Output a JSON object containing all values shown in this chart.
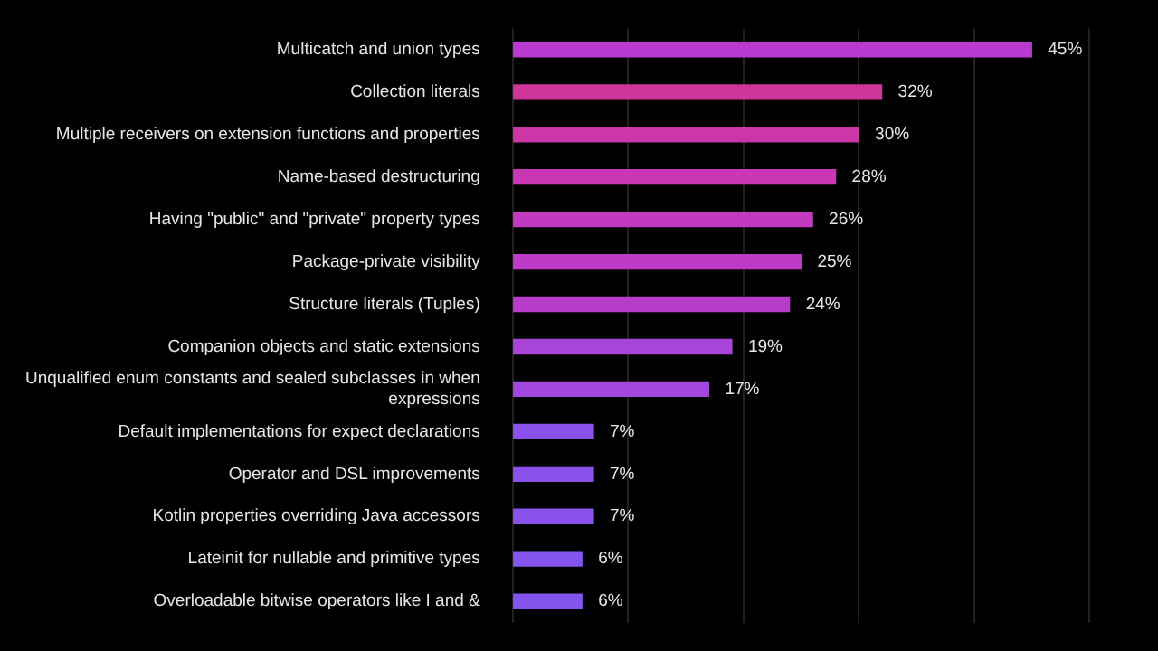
{
  "chart_data": {
    "type": "bar",
    "orientation": "horizontal",
    "categories": [
      "Multicatch and union types",
      "Collection literals",
      "Multiple receivers on extension functions and properties",
      "Name-based destructuring",
      "Having \"public\" and \"private\" property types",
      "Package-private visibility",
      "Structure literals (Tuples)",
      "Companion objects and static extensions",
      "Unqualified enum constants and sealed subclasses in when expressions",
      "Default implementations for expect declarations",
      "Operator and DSL improvements",
      "Kotlin properties overriding Java accessors",
      "Lateinit for nullable and primitive types",
      "Overloadable bitwise operators like I and &"
    ],
    "values": [
      45,
      32,
      30,
      28,
      26,
      25,
      24,
      19,
      17,
      7,
      7,
      7,
      6,
      6
    ],
    "value_labels": [
      "45%",
      "32%",
      "30%",
      "28%",
      "26%",
      "25%",
      "24%",
      "19%",
      "17%",
      "7%",
      "7%",
      "7%",
      "6%",
      "6%"
    ],
    "colors": [
      "#b93ad0",
      "#d0359a",
      "#cc37a8",
      "#c937b4",
      "#c23abf",
      "#bd3bc6",
      "#b83cca",
      "#a944d8",
      "#a147de",
      "#8a52ea",
      "#8a52ea",
      "#8a52ea",
      "#8355ee",
      "#8355ee"
    ],
    "xlim": [
      0,
      50
    ],
    "xticks": [
      {
        "value": 0,
        "label": null
      },
      {
        "value": 10,
        "label": null
      },
      {
        "value": 20,
        "label": null
      },
      {
        "value": 30,
        "label": null
      },
      {
        "value": 40,
        "label": null
      },
      {
        "value": 50,
        "label": null
      }
    ],
    "grid": "x",
    "tick_labels": "y"
  }
}
